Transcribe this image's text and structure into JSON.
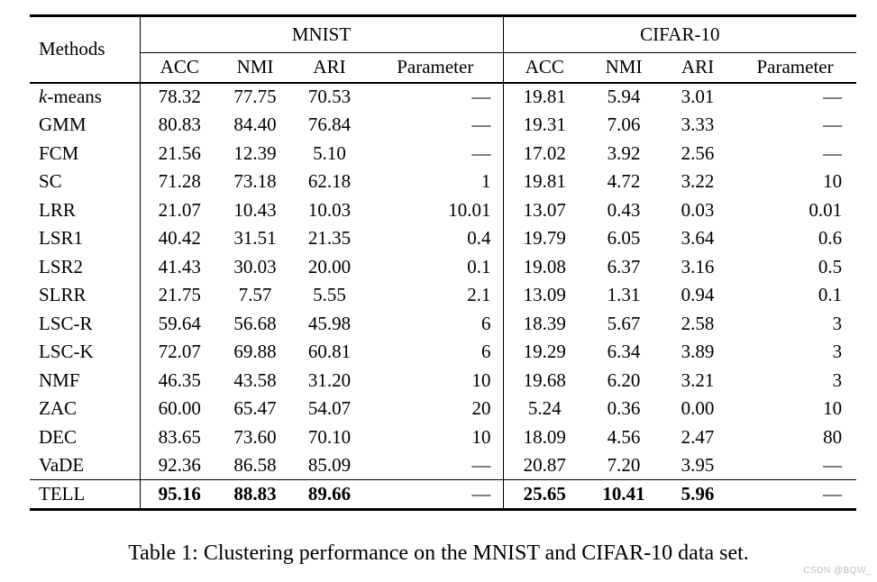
{
  "table": {
    "corner_header": "Methods",
    "groups": [
      {
        "label": "MNIST",
        "columns": [
          "ACC",
          "NMI",
          "ARI",
          "Parameter"
        ]
      },
      {
        "label": "CIFAR-10",
        "columns": [
          "ACC",
          "NMI",
          "ARI",
          "Parameter"
        ]
      }
    ],
    "rows": [
      {
        "method": "k-means",
        "values": [
          "78.32",
          "77.75",
          "70.53",
          "—",
          "19.81",
          "5.94",
          "3.01",
          "—"
        ]
      },
      {
        "method": "GMM",
        "values": [
          "80.83",
          "84.40",
          "76.84",
          "—",
          "19.31",
          "7.06",
          "3.33",
          "—"
        ]
      },
      {
        "method": "FCM",
        "values": [
          "21.56",
          "12.39",
          "5.10",
          "—",
          "17.02",
          "3.92",
          "2.56",
          "—"
        ]
      },
      {
        "method": "SC",
        "values": [
          "71.28",
          "73.18",
          "62.18",
          "1",
          "19.81",
          "4.72",
          "3.22",
          "10"
        ]
      },
      {
        "method": "LRR",
        "values": [
          "21.07",
          "10.43",
          "10.03",
          "10.01",
          "13.07",
          "0.43",
          "0.03",
          "0.01"
        ]
      },
      {
        "method": "LSR1",
        "values": [
          "40.42",
          "31.51",
          "21.35",
          "0.4",
          "19.79",
          "6.05",
          "3.64",
          "0.6"
        ]
      },
      {
        "method": "LSR2",
        "values": [
          "41.43",
          "30.03",
          "20.00",
          "0.1",
          "19.08",
          "6.37",
          "3.16",
          "0.5"
        ]
      },
      {
        "method": "SLRR",
        "values": [
          "21.75",
          "7.57",
          "5.55",
          "2.1",
          "13.09",
          "1.31",
          "0.94",
          "0.1"
        ]
      },
      {
        "method": "LSC-R",
        "values": [
          "59.64",
          "56.68",
          "45.98",
          "6",
          "18.39",
          "5.67",
          "2.58",
          "3"
        ]
      },
      {
        "method": "LSC-K",
        "values": [
          "72.07",
          "69.88",
          "60.81",
          "6",
          "19.29",
          "6.34",
          "3.89",
          "3"
        ]
      },
      {
        "method": "NMF",
        "values": [
          "46.35",
          "43.58",
          "31.20",
          "10",
          "19.68",
          "6.20",
          "3.21",
          "3"
        ]
      },
      {
        "method": "ZAC",
        "values": [
          "60.00",
          "65.47",
          "54.07",
          "20",
          "5.24",
          "0.36",
          "0.00",
          "10"
        ]
      },
      {
        "method": "DEC",
        "values": [
          "83.65",
          "73.60",
          "70.10",
          "10",
          "18.09",
          "4.56",
          "2.47",
          "80"
        ]
      },
      {
        "method": "VaDE",
        "values": [
          "92.36",
          "86.58",
          "85.09",
          "—",
          "20.87",
          "7.20",
          "3.95",
          "—"
        ]
      },
      {
        "method": "TELL",
        "highlight": true,
        "values": [
          "95.16",
          "88.83",
          "89.66",
          "—",
          "25.65",
          "10.41",
          "5.96",
          "—"
        ]
      }
    ]
  },
  "caption": "Table 1: Clustering performance on the MNIST and CIFAR-10 data set.",
  "watermark": "CSDN @BQW_",
  "colors": {
    "text": "#000000",
    "rule": "#000000",
    "background": "#ffffff",
    "watermark": "#c9bab5"
  }
}
